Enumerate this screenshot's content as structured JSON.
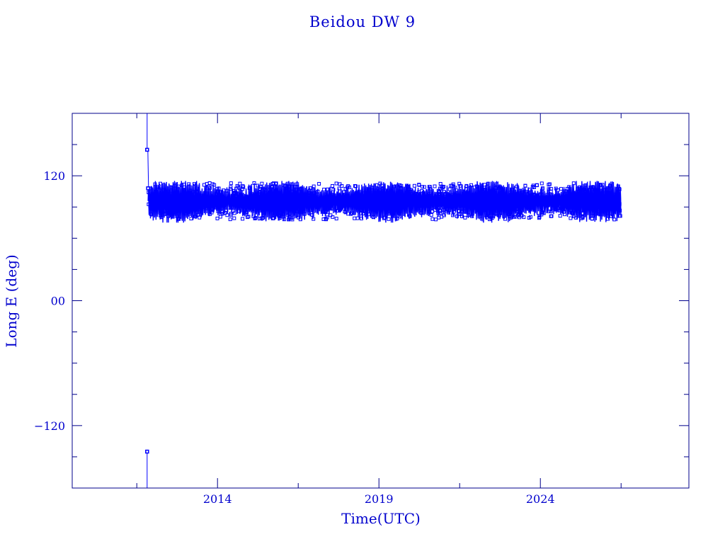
{
  "chart_data": {
    "type": "scatter",
    "title": "Beidou DW 9",
    "xlabel": "Time(UTC)",
    "ylabel": "Long E (deg)",
    "xlim": [
      2009.5,
      2028.6
    ],
    "ylim": [
      -180,
      180
    ],
    "x_ticks": [
      {
        "value": 2014,
        "label": "2014"
      },
      {
        "value": 2019,
        "label": "2019"
      },
      {
        "value": 2024,
        "label": "2024"
      }
    ],
    "x_minor_ticks": [
      2011.5,
      2016.5,
      2021.5,
      2026.5
    ],
    "y_ticks": [
      {
        "value": 120,
        "label": "120"
      },
      {
        "value": 0,
        "label": "00"
      },
      {
        "value": -120,
        "label": "-120"
      }
    ],
    "y_minor_ticks": [
      150,
      90,
      60,
      30,
      -30,
      -60,
      -90,
      -150
    ],
    "grid": false,
    "color": "#0000ff",
    "axis_color": "#00008b",
    "band": {
      "x_start": 2011.85,
      "x_end": 2026.5,
      "typical_min": 78,
      "typical_max": 113,
      "min": 75,
      "max": 115
    },
    "outliers": [
      {
        "x": 2011.82,
        "y": 145
      },
      {
        "x": 2011.82,
        "y": -145
      },
      {
        "x": 2011.85,
        "y": 108
      }
    ]
  }
}
